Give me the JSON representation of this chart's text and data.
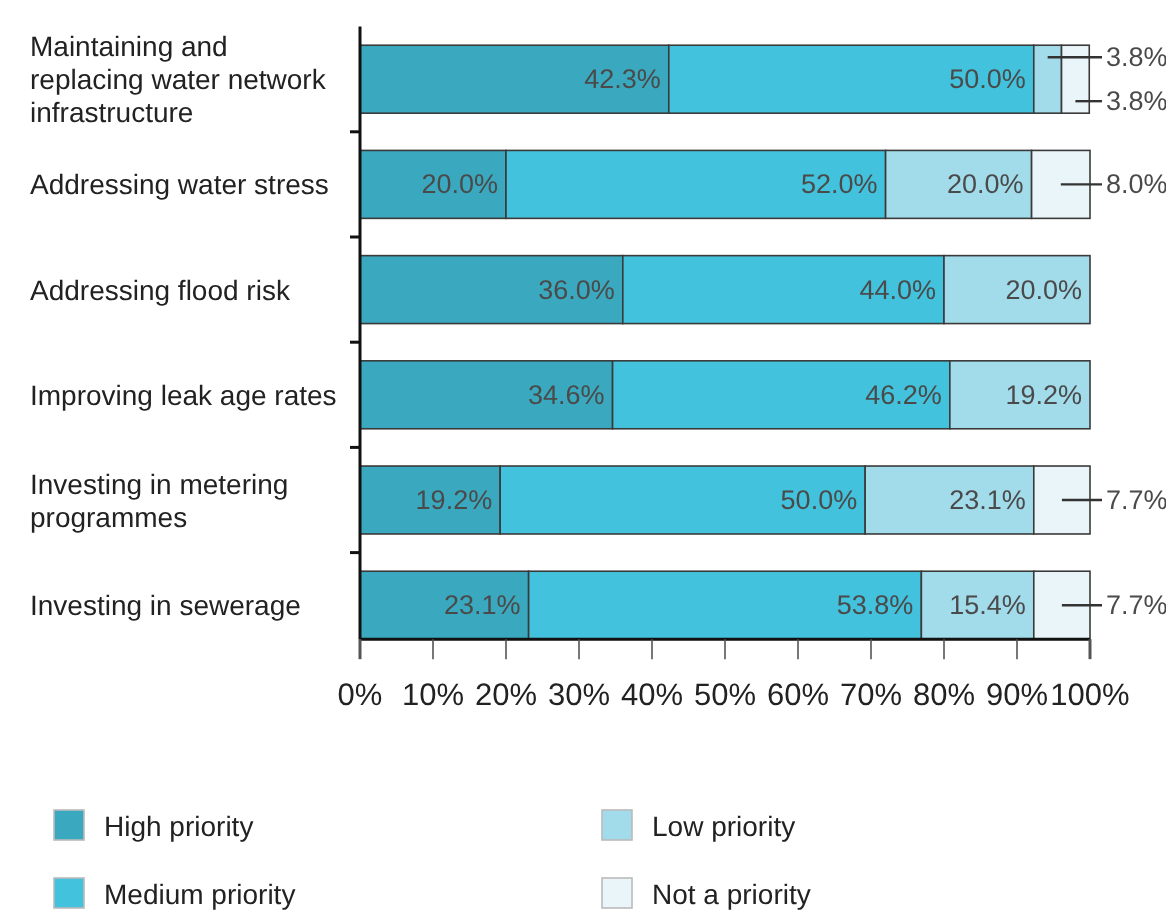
{
  "chart_data": {
    "type": "bar",
    "orientation": "horizontal",
    "stacked": true,
    "categories": [
      "Maintaining and replacing water network infrastructure",
      "Addressing water stress",
      "Addressing flood risk",
      "Improving leak age rates",
      "Investing in metering programmes",
      "Investing in sewerage"
    ],
    "series": [
      {
        "name": "High priority",
        "color": "#3aa8be",
        "values": [
          42.3,
          20.0,
          36.0,
          34.6,
          19.2,
          23.1
        ],
        "value_labels": [
          "42.3%",
          "20.0%",
          "36.0%",
          "34.6%",
          "19.2%",
          "23.1%"
        ]
      },
      {
        "name": "Medium priority",
        "color": "#42c2dc",
        "values": [
          50.0,
          52.0,
          44.0,
          46.2,
          50.0,
          53.8
        ],
        "value_labels": [
          "50.0%",
          "52.0%",
          "44.0%",
          "46.2%",
          "50.0%",
          "53.8%"
        ]
      },
      {
        "name": "Low priority",
        "color": "#a2dbea",
        "values": [
          3.8,
          20.0,
          20.0,
          19.2,
          23.1,
          15.4
        ],
        "value_labels": [
          "3.8%",
          "20.0%",
          "20.0%",
          "19.2%",
          "23.1%",
          "15.4%"
        ]
      },
      {
        "name": "Not a priority",
        "color": "#e9f5f8",
        "values": [
          3.8,
          8.0,
          null,
          null,
          7.7,
          7.7
        ],
        "value_labels": [
          "3.8%",
          "8.0%",
          null,
          null,
          "7.7%",
          "7.7%"
        ]
      }
    ],
    "xlim": [
      0,
      100
    ],
    "xticks": [
      {
        "value": 0,
        "label": "0%"
      },
      {
        "value": 10,
        "label": "10%"
      },
      {
        "value": 20,
        "label": "20%"
      },
      {
        "value": 30,
        "label": "30%"
      },
      {
        "value": 40,
        "label": "40%"
      },
      {
        "value": 50,
        "label": "50%"
      },
      {
        "value": 60,
        "label": "60%"
      },
      {
        "value": 70,
        "label": "70%"
      },
      {
        "value": 80,
        "label": "80%"
      },
      {
        "value": 90,
        "label": "90%"
      },
      {
        "value": 100,
        "label": "100%"
      }
    ],
    "legend": "bottom"
  }
}
